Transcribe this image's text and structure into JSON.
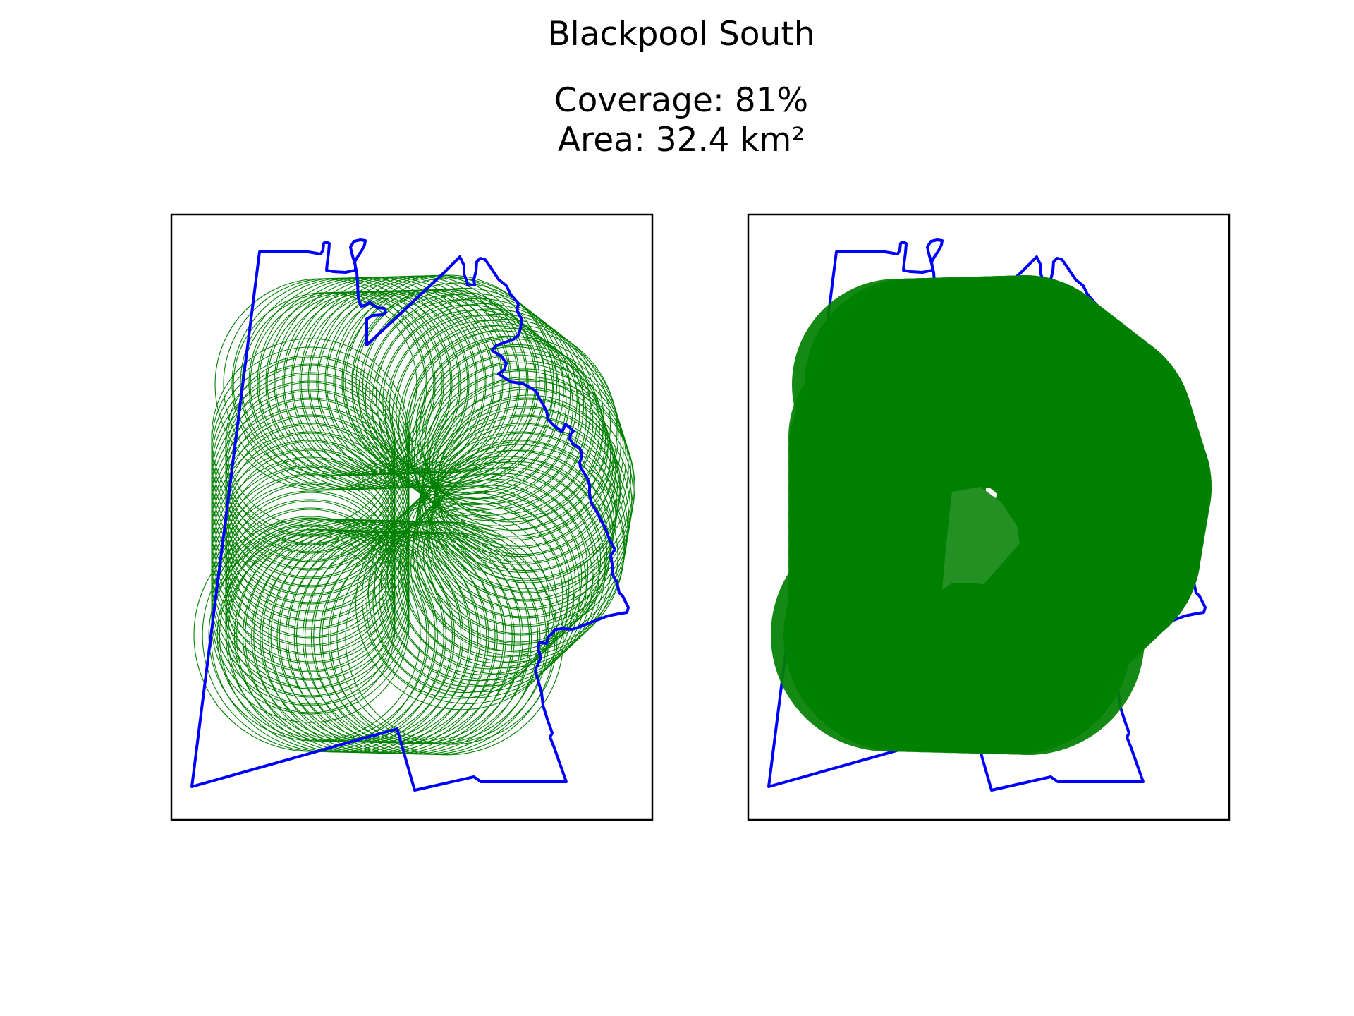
{
  "figure": {
    "title": "Blackpool South",
    "coverage_line": "Coverage: 81%",
    "area_line": "Area: 32.4 km²"
  },
  "panels": [
    {
      "panel_name": "circle-outlines-map",
      "circle_style": "outline"
    },
    {
      "panel_name": "filled-coverage-map",
      "circle_style": "filled"
    }
  ],
  "colors": {
    "boundary": "#0000ff",
    "coverage": "#008000",
    "gap_fill": "#229022",
    "frame": "#000000",
    "background": "#ffffff"
  },
  "coverage": {
    "percent": 81,
    "area_km2": 32.4
  }
}
